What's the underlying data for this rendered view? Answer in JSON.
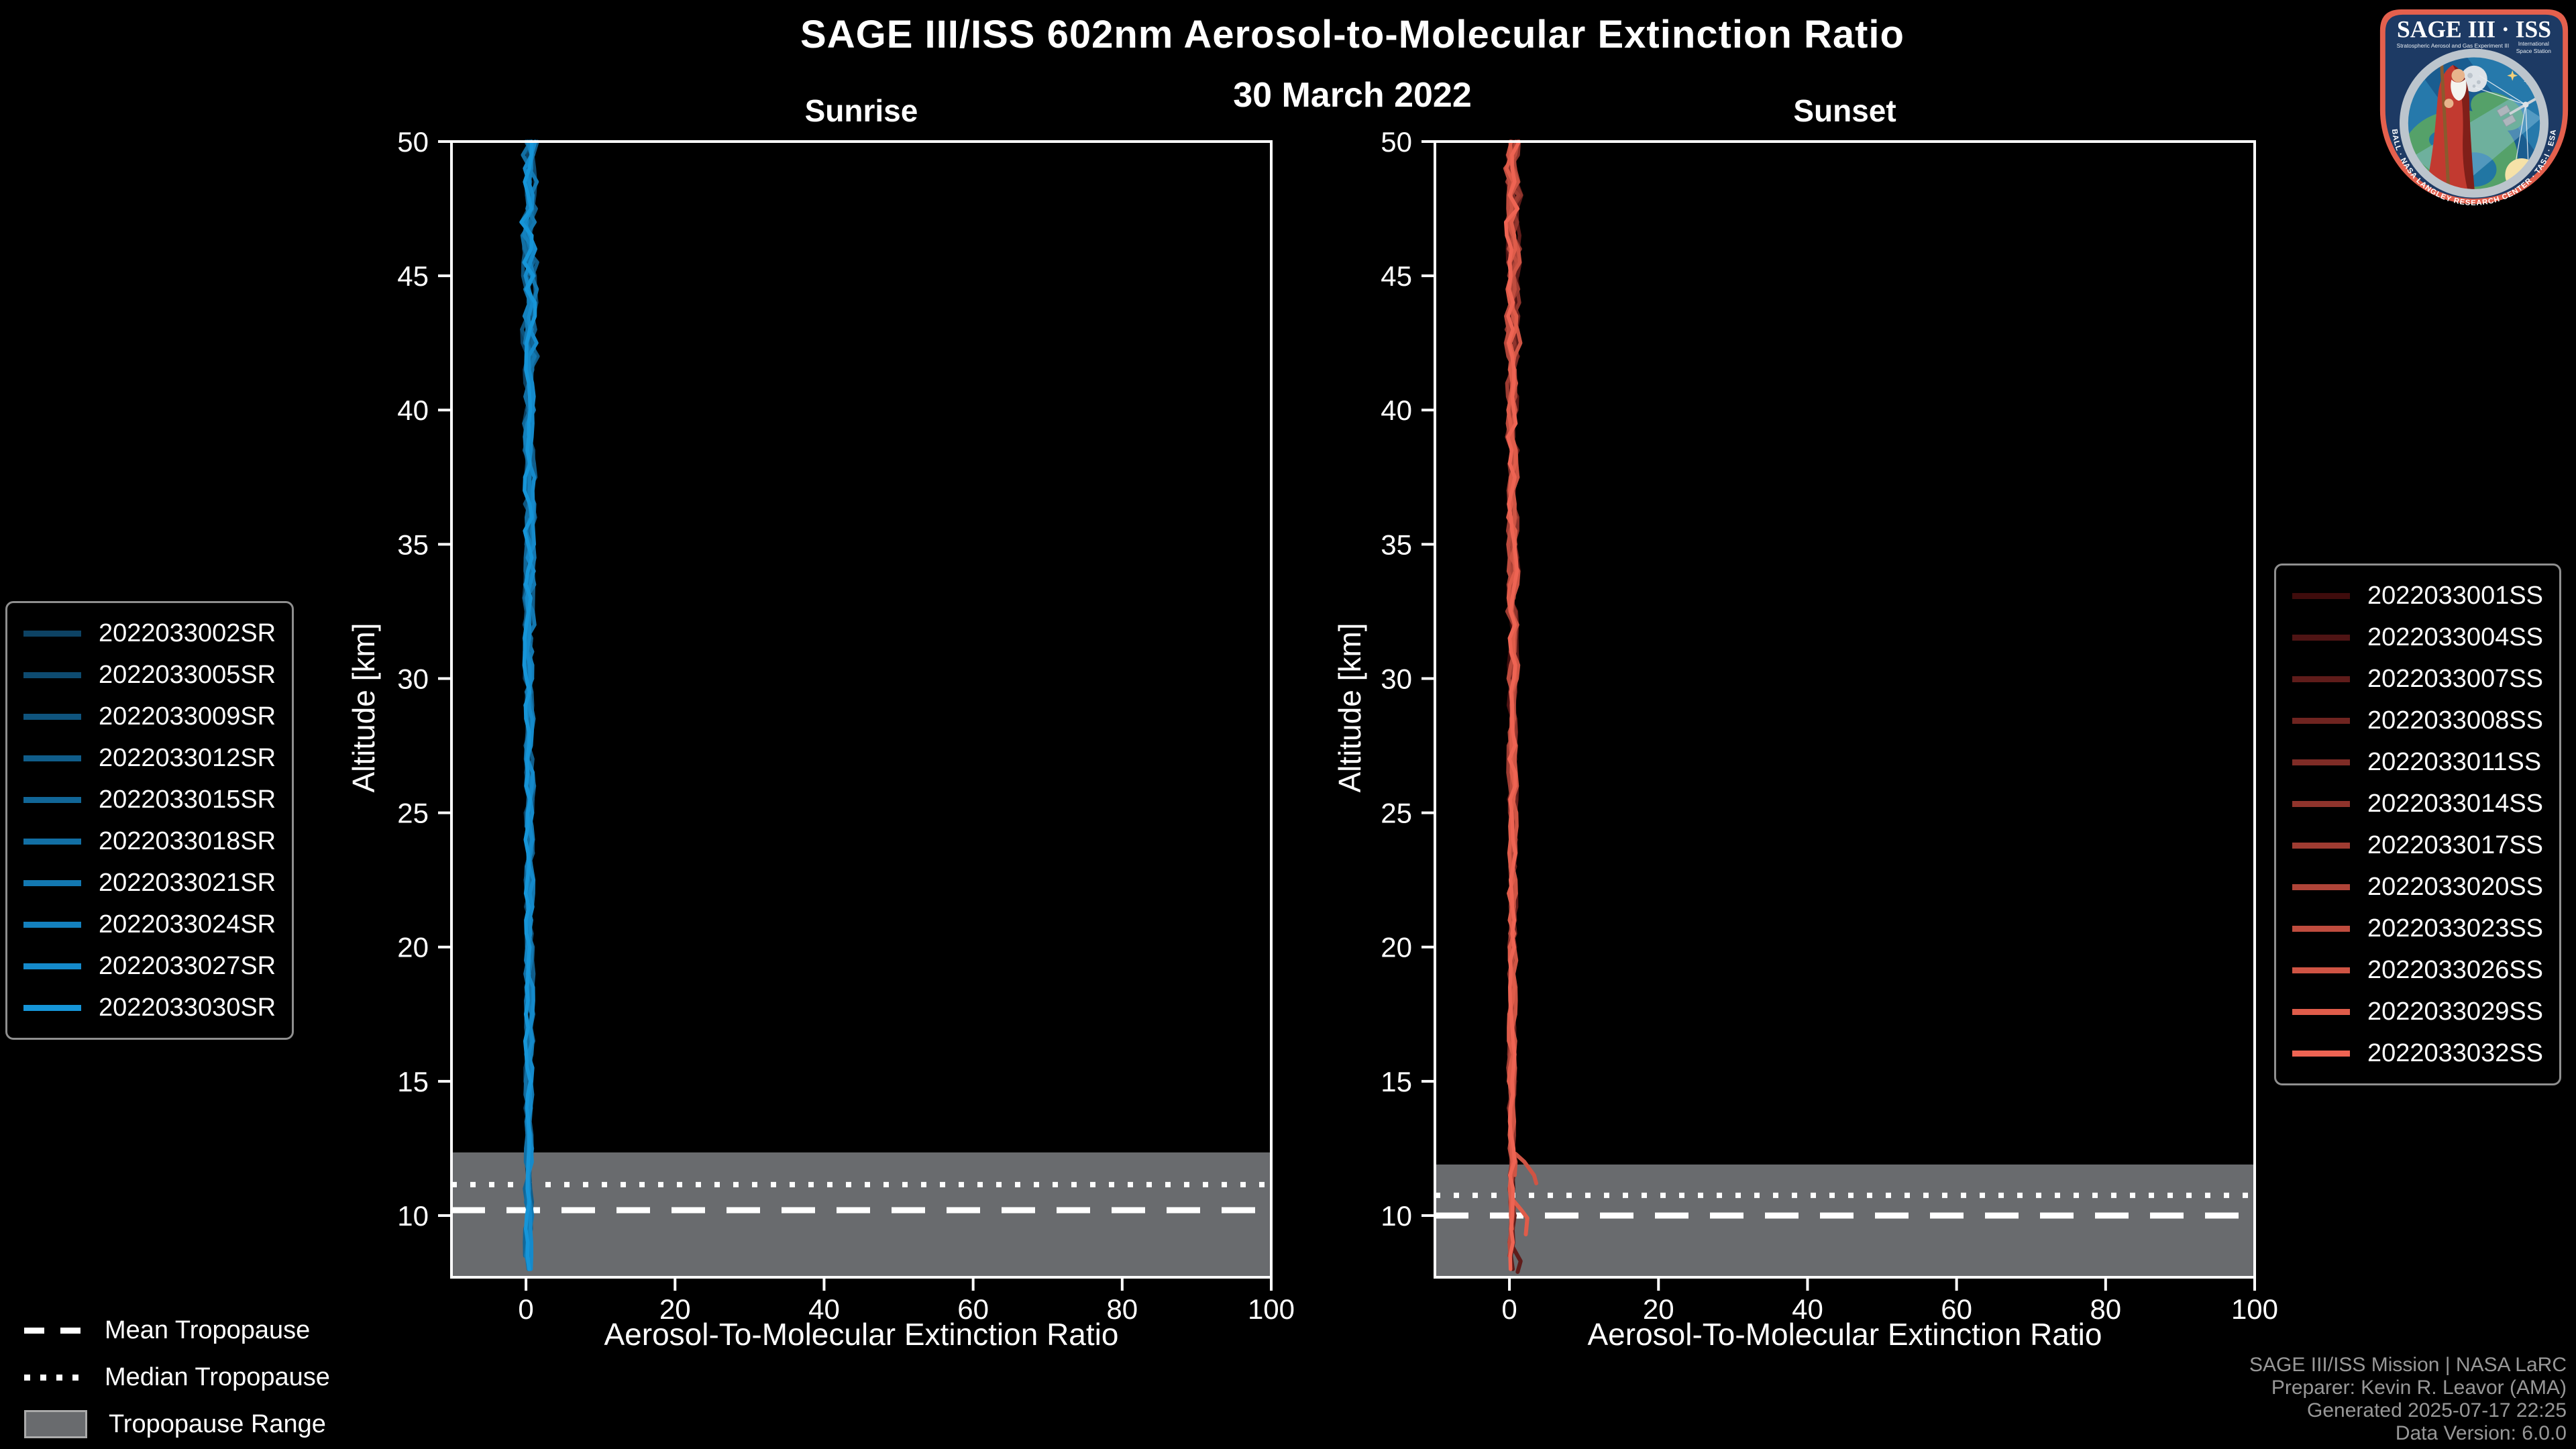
{
  "header": {
    "title": "SAGE III/ISS 602nm Aerosol-to-Molecular Extinction Ratio",
    "date": "30 March 2022"
  },
  "tropopause_legend": {
    "mean_label": "Mean Tropopause",
    "median_label": "Median Tropopause",
    "range_label": "Tropopause Range"
  },
  "footer": {
    "mission": "SAGE III/ISS Mission | NASA LaRC",
    "preparer": "Preparer: Kevin R. Leavor (AMA)",
    "generated": "Generated 2025-07-17 22:25",
    "data_version": "Data Version: 6.0.0"
  },
  "logo": {
    "title": "SAGE III · ISS",
    "subtitle_left": "Stratospheric Aerosol and Gas Experiment III",
    "subtitle_right_1": "International",
    "subtitle_right_2": "Space Station",
    "ring_text": "BALL · NASA LANGLEY RESEARCH CENTER · TAS-I · ESA",
    "colors": {
      "border": "#e4604d",
      "navy": "#1d3a64",
      "ring": "#bcc5cd",
      "sky": "#2679ab",
      "shadow": "#1a5d90",
      "land": "#55a169",
      "beam": "#8fc3de",
      "moon": "#dde2e7",
      "sun": "#f6e2a8",
      "robe": "#c23a30",
      "robe_dark": "#801f19",
      "beard": "#f4f3ef",
      "skin": "#e8b48c",
      "staff": "#8a5a2e"
    }
  },
  "chart_data": [
    {
      "type": "line",
      "panel": "sunrise",
      "title": "Sunrise",
      "xlabel": "Aerosol-To-Molecular Extinction Ratio",
      "ylabel": "Altitude [km]",
      "xlim": [
        -10,
        100
      ],
      "ylim": [
        7.7,
        50
      ],
      "xticks": [
        0,
        20,
        40,
        60,
        80,
        100
      ],
      "yticks": [
        50,
        45,
        40,
        35,
        30,
        25,
        20,
        15,
        10
      ],
      "grid": false,
      "band_color": "#696b6e",
      "tropopause": {
        "mean_km": 10.2,
        "median_km": 11.15,
        "range_km": [
          7.7,
          12.35
        ]
      },
      "representative_profile": {
        "altitude_km": [
          50,
          49,
          48,
          47,
          46,
          45,
          44,
          43,
          42,
          41,
          40,
          39,
          38,
          37,
          36,
          35,
          34,
          33,
          32,
          31,
          30,
          29,
          28,
          27,
          26,
          25,
          24,
          23,
          22,
          21,
          20,
          19,
          18,
          17,
          16,
          15,
          14,
          13,
          12,
          11,
          10,
          9,
          8
        ],
        "ratio": [
          0.5,
          0.2,
          0.7,
          0.3,
          0.6,
          0.4,
          0.8,
          0.3,
          0.6,
          0.4,
          0.5,
          0.3,
          0.6,
          0.4,
          0.5,
          0.4,
          0.6,
          0.3,
          0.5,
          0.4,
          0.5,
          0.4,
          0.5,
          0.3,
          0.5,
          0.4,
          0.5,
          0.4,
          0.4,
          0.5,
          0.4,
          0.4,
          0.5,
          0.4,
          0.4,
          0.4,
          0.3,
          0.4,
          0.4,
          0.3,
          0.4,
          0.3,
          0.3
        ]
      },
      "series": [
        {
          "name": "2022033002SR",
          "color": "#0d4263",
          "min_alt": 8.3,
          "seed": 101
        },
        {
          "name": "2022033005SR",
          "color": "#0e4b70",
          "min_alt": 8.2,
          "seed": 102
        },
        {
          "name": "2022033009SR",
          "color": "#0f547d",
          "min_alt": 8.4,
          "seed": 103
        },
        {
          "name": "2022033012SR",
          "color": "#105d8a",
          "min_alt": 8.1,
          "seed": 104
        },
        {
          "name": "2022033015SR",
          "color": "#116697",
          "min_alt": 8.2,
          "seed": 105
        },
        {
          "name": "2022033018SR",
          "color": "#126fa4",
          "min_alt": 8.0,
          "seed": 106
        },
        {
          "name": "2022033021SR",
          "color": "#1378b1",
          "min_alt": 8.1,
          "seed": 107
        },
        {
          "name": "2022033024SR",
          "color": "#1481be",
          "min_alt": 7.9,
          "seed": 108
        },
        {
          "name": "2022033027SR",
          "color": "#158acb",
          "min_alt": 8.0,
          "seed": 109
        },
        {
          "name": "2022033030SR",
          "color": "#1695d8",
          "min_alt": 7.7,
          "seed": 110
        }
      ]
    },
    {
      "type": "line",
      "panel": "sunset",
      "title": "Sunset",
      "xlabel": "Aerosol-To-Molecular Extinction Ratio",
      "ylabel": "Altitude [km]",
      "xlim": [
        -10,
        100
      ],
      "ylim": [
        7.7,
        50
      ],
      "xticks": [
        0,
        20,
        40,
        60,
        80,
        100
      ],
      "yticks": [
        50,
        45,
        40,
        35,
        30,
        25,
        20,
        15,
        10
      ],
      "grid": false,
      "band_color": "#696b6e",
      "tropopause": {
        "mean_km": 10.0,
        "median_km": 10.75,
        "range_km": [
          7.7,
          11.9
        ]
      },
      "representative_profile": {
        "altitude_km": [
          50,
          49,
          48,
          47,
          46,
          45,
          44,
          43,
          42,
          41,
          40,
          39,
          38,
          37,
          36,
          35,
          34,
          33,
          32,
          31,
          30,
          29,
          28,
          27,
          26,
          25,
          24,
          23,
          22,
          21,
          20,
          19,
          18,
          17,
          16,
          15,
          14,
          13,
          12,
          11,
          10,
          9,
          8
        ],
        "ratio": [
          0.5,
          0.3,
          0.7,
          0.2,
          0.6,
          0.4,
          0.7,
          0.3,
          0.6,
          0.4,
          0.5,
          0.3,
          0.6,
          0.4,
          0.5,
          0.4,
          0.6,
          0.3,
          0.5,
          0.4,
          0.5,
          0.4,
          0.5,
          0.3,
          0.5,
          0.4,
          0.5,
          0.4,
          0.4,
          0.5,
          0.4,
          0.4,
          0.5,
          0.4,
          0.4,
          0.4,
          0.3,
          0.4,
          0.4,
          0.3,
          0.4,
          0.3,
          0.3
        ]
      },
      "series": [
        {
          "name": "2022033001SS",
          "color": "#3f0c0c",
          "min_alt": 9.2,
          "seed": 201
        },
        {
          "name": "2022033004SS",
          "color": "#4f1414",
          "min_alt": 8.8,
          "seed": 202
        },
        {
          "name": "2022033007SS",
          "color": "#5f1c1a",
          "min_alt": 7.9,
          "seed": 203,
          "extra_segment": [
            [
              0.5,
              8.8
            ],
            [
              1.5,
              8.3
            ],
            [
              1.1,
              7.9
            ]
          ]
        },
        {
          "name": "2022033008SS",
          "color": "#6f2420",
          "min_alt": 9.0,
          "seed": 204
        },
        {
          "name": "2022033011SS",
          "color": "#7f2c26",
          "min_alt": 8.6,
          "seed": 205
        },
        {
          "name": "2022033014SS",
          "color": "#8f342c",
          "min_alt": 9.3,
          "seed": 206
        },
        {
          "name": "2022033017SS",
          "color": "#9f3c32",
          "min_alt": 8.4,
          "seed": 207
        },
        {
          "name": "2022033020SS",
          "color": "#af4438",
          "min_alt": 8.9,
          "seed": 208
        },
        {
          "name": "2022033023SS",
          "color": "#bf4c3e",
          "min_alt": 8.2,
          "seed": 209
        },
        {
          "name": "2022033026SS",
          "color": "#cf5444",
          "min_alt": 11.2,
          "seed": 210,
          "extra_segment": [
            [
              0.8,
              12.3
            ],
            [
              2.0,
              12.0
            ],
            [
              3.3,
              11.5
            ],
            [
              3.6,
              11.2
            ]
          ]
        },
        {
          "name": "2022033029SS",
          "color": "#df5c4a",
          "min_alt": 9.3,
          "seed": 211,
          "extra_segment": [
            [
              0.4,
              10.6
            ],
            [
              1.6,
              10.2
            ],
            [
              2.4,
              9.9
            ],
            [
              2.2,
              9.3
            ]
          ]
        },
        {
          "name": "2022033032SS",
          "color": "#ee6453",
          "min_alt": 7.7,
          "seed": 212
        }
      ]
    }
  ]
}
